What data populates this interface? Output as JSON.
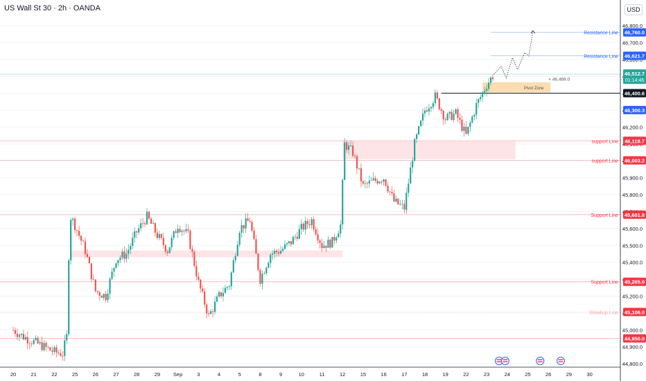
{
  "header": {
    "symbol_title": "US Wall St 30 · 2h · OANDA",
    "currency": "USD"
  },
  "chart_data": {
    "type": "candlestick",
    "instrument": "US Wall St 30",
    "timeframe": "2h",
    "source": "OANDA",
    "ylim": [
      44780,
      46890
    ],
    "yticks": [
      44800,
      44900,
      45000,
      45100,
      45200,
      45300,
      45400,
      45500,
      45600,
      45700,
      45800,
      45900,
      46000,
      46100,
      46200,
      46300,
      46400,
      46500,
      46600,
      46700,
      46800
    ],
    "xticks": [
      {
        "label": "20",
        "day": 0
      },
      {
        "label": "21",
        "day": 1
      },
      {
        "label": "22",
        "day": 2
      },
      {
        "label": "25",
        "day": 3
      },
      {
        "label": "26",
        "day": 4
      },
      {
        "label": "27",
        "day": 5
      },
      {
        "label": "28",
        "day": 6
      },
      {
        "label": "29",
        "day": 7
      },
      {
        "label": "Sep",
        "day": 8
      },
      {
        "label": "3",
        "day": 9
      },
      {
        "label": "4",
        "day": 10
      },
      {
        "label": "5",
        "day": 11
      },
      {
        "label": "8",
        "day": 12
      },
      {
        "label": "9",
        "day": 13
      },
      {
        "label": "10",
        "day": 14
      },
      {
        "label": "11",
        "day": 15
      },
      {
        "label": "12",
        "day": 16
      },
      {
        "label": "15",
        "day": 17
      },
      {
        "label": "16",
        "day": 18
      },
      {
        "label": "17",
        "day": 19
      },
      {
        "label": "18",
        "day": 20
      },
      {
        "label": "19",
        "day": 21
      },
      {
        "label": "22",
        "day": 22
      },
      {
        "label": "23",
        "day": 23
      },
      {
        "label": "24",
        "day": 24
      },
      {
        "label": "25",
        "day": 25
      },
      {
        "label": "26",
        "day": 26
      },
      {
        "label": "29",
        "day": 27
      },
      {
        "label": "30",
        "day": 28
      }
    ],
    "daily_close_path": [
      {
        "day": 0.0,
        "price": 45000
      },
      {
        "day": 0.5,
        "price": 44960
      },
      {
        "day": 1.0,
        "price": 44930
      },
      {
        "day": 1.5,
        "price": 44900
      },
      {
        "day": 2.0,
        "price": 44870
      },
      {
        "day": 2.4,
        "price": 44860
      },
      {
        "day": 2.6,
        "price": 44960
      },
      {
        "day": 2.75,
        "price": 45680
      },
      {
        "day": 3.0,
        "price": 45620
      },
      {
        "day": 3.5,
        "price": 45470
      },
      {
        "day": 4.0,
        "price": 45230
      },
      {
        "day": 4.5,
        "price": 45200
      },
      {
        "day": 5.0,
        "price": 45420
      },
      {
        "day": 5.5,
        "price": 45450
      },
      {
        "day": 6.0,
        "price": 45580
      },
      {
        "day": 6.5,
        "price": 45670
      },
      {
        "day": 7.0,
        "price": 45560
      },
      {
        "day": 7.5,
        "price": 45470
      },
      {
        "day": 8.0,
        "price": 45620
      },
      {
        "day": 8.5,
        "price": 45560
      },
      {
        "day": 9.0,
        "price": 45280
      },
      {
        "day": 9.5,
        "price": 45080
      },
      {
        "day": 10.0,
        "price": 45200
      },
      {
        "day": 10.5,
        "price": 45270
      },
      {
        "day": 11.0,
        "price": 45600
      },
      {
        "day": 11.5,
        "price": 45650
      },
      {
        "day": 12.0,
        "price": 45300
      },
      {
        "day": 12.5,
        "price": 45450
      },
      {
        "day": 13.0,
        "price": 45470
      },
      {
        "day": 13.5,
        "price": 45520
      },
      {
        "day": 14.0,
        "price": 45600
      },
      {
        "day": 14.5,
        "price": 45650
      },
      {
        "day": 15.0,
        "price": 45500
      },
      {
        "day": 15.5,
        "price": 45520
      },
      {
        "day": 15.9,
        "price": 45620
      },
      {
        "day": 16.1,
        "price": 46100
      },
      {
        "day": 16.5,
        "price": 46050
      },
      {
        "day": 17.0,
        "price": 45850
      },
      {
        "day": 17.5,
        "price": 45880
      },
      {
        "day": 18.0,
        "price": 45900
      },
      {
        "day": 18.5,
        "price": 45760
      },
      {
        "day": 19.0,
        "price": 45720
      },
      {
        "day": 19.5,
        "price": 46100
      },
      {
        "day": 20.0,
        "price": 46300
      },
      {
        "day": 20.5,
        "price": 46380
      },
      {
        "day": 21.0,
        "price": 46250
      },
      {
        "day": 21.5,
        "price": 46280
      },
      {
        "day": 22.0,
        "price": 46150
      },
      {
        "day": 22.5,
        "price": 46330
      },
      {
        "day": 23.0,
        "price": 46450
      },
      {
        "day": 23.35,
        "price": 46512
      }
    ],
    "zones": [
      {
        "label": "",
        "day_from": 2.8,
        "day_to": 16.0,
        "price_low": 45430,
        "price_high": 45470
      },
      {
        "label": "",
        "day_from": 16.0,
        "day_to": 24.4,
        "price_low": 46010,
        "price_high": 46115
      },
      {
        "label": "Pivot Zone",
        "day_from": 22.8,
        "day_to": 26.1,
        "price_low": 46405,
        "price_high": 46465
      }
    ],
    "level_lines": [
      {
        "label": "Resistance Line",
        "price": 46760.0,
        "tag": "46,760.0",
        "kind": "resistance"
      },
      {
        "label": "Resistance Line",
        "price": 46621.7,
        "tag": "46,621.7",
        "kind": "resistance"
      },
      {
        "label": "support Line",
        "price": 46118.7,
        "tag": "46,118.7",
        "kind": "support"
      },
      {
        "label": "support Line",
        "price": 46003.2,
        "tag": "46,003.2",
        "kind": "support"
      },
      {
        "label": "Support Line",
        "price": 45681.8,
        "tag": "45,681.8",
        "kind": "support"
      },
      {
        "label": "Support Line",
        "price": 45285.0,
        "tag": "45,285.0",
        "kind": "support"
      },
      {
        "label": "Breakup Line",
        "price": 45106.0,
        "tag": "45,106.0",
        "kind": "breakup"
      },
      {
        "label": "",
        "price": 44950.0,
        "tag": "44,950.0",
        "kind": "support"
      }
    ],
    "price_tags": [
      {
        "price": 46400.6,
        "tag": "46,400.6",
        "kind": "black"
      },
      {
        "price": 46300.3,
        "tag": "46,300.3",
        "kind": "blue"
      }
    ],
    "current_price": {
      "price": 46512.7,
      "tag": "46,512.7",
      "countdown": "01:14:46"
    },
    "pivot_annotation": "46,469.0",
    "projection_path": [
      {
        "day": 23.35,
        "price": 46512
      },
      {
        "day": 23.7,
        "price": 46560
      },
      {
        "day": 23.95,
        "price": 46490
      },
      {
        "day": 24.25,
        "price": 46610
      },
      {
        "day": 24.5,
        "price": 46540
      },
      {
        "day": 24.85,
        "price": 46640
      },
      {
        "day": 25.05,
        "price": 46620
      },
      {
        "day": 25.25,
        "price": 46770
      }
    ],
    "event_markers": [
      {
        "day": 23.6
      },
      {
        "day": 23.9
      },
      {
        "day": 25.6
      },
      {
        "day": 26.6
      }
    ],
    "colors": {
      "up": "#26a69a",
      "down": "#ef5350",
      "resistance": "#2962ff",
      "support": "#f23645",
      "breakup": "#f7a6a6",
      "zone": "#fcdcdf",
      "pivot_zone": "#fbd9a8",
      "current": "#26a69a",
      "axis_text": "#131722",
      "grid": "#f0f3fa"
    }
  }
}
